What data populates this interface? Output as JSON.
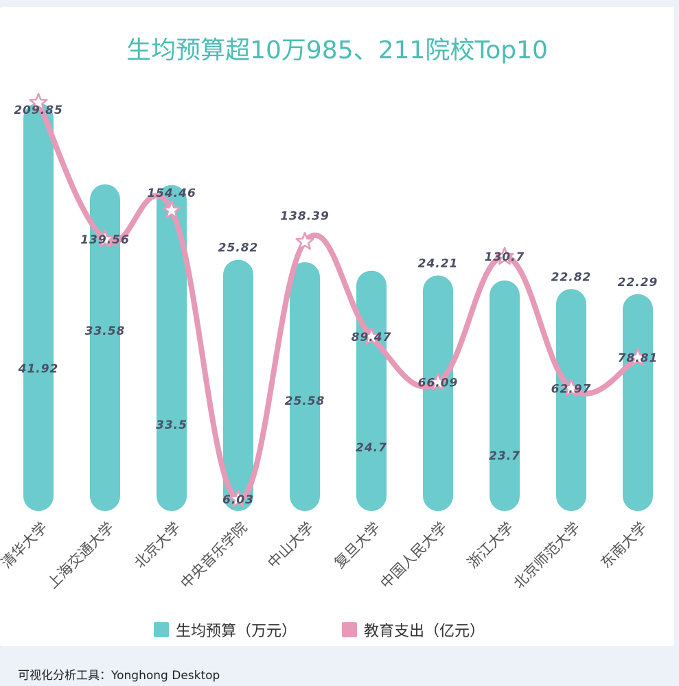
{
  "chart_data": {
    "type": "bar",
    "title": "生均预算超10万985、211院校Top10",
    "categories": [
      "清华大学",
      "上海交通大学",
      "北京大学",
      "中央音乐学院",
      "中山大学",
      "复旦大学",
      "中国人民大学",
      "浙江大学",
      "北京师范大学",
      "东南大学"
    ],
    "series": [
      {
        "name": "生均预算（万元）",
        "type": "bar",
        "color": "#6ccbcc",
        "values": [
          41.92,
          33.58,
          33.5,
          25.82,
          25.58,
          24.7,
          24.21,
          23.7,
          22.82,
          22.29
        ]
      },
      {
        "name": "教育支出（亿元）",
        "type": "line",
        "color": "#e69ab8",
        "values": [
          209.85,
          139.56,
          154.46,
          6.03,
          138.39,
          89.47,
          66.09,
          130.7,
          62.97,
          78.81
        ]
      }
    ],
    "bar_ylim": [
      0,
      43
    ],
    "line_ylim": [
      0,
      215
    ],
    "legend_position": "bottom",
    "grid": false
  },
  "footer": {
    "text": "可视化分析工具：Yonghong Desktop"
  }
}
